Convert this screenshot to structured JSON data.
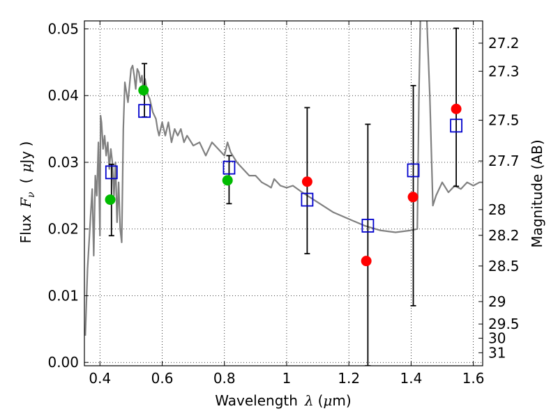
{
  "chart_data": {
    "type": "scatter",
    "xlabel": "Wavelength",
    "xlabel_symbol": "λ",
    "xlabel_unit_prefix": "(",
    "xlabel_unit_mu": "μ",
    "xlabel_unit_rest": "m)",
    "ylabel": "Flux",
    "ylabel_symbol": "F",
    "ylabel_subscript": "ν",
    "ylabel_unit_prefix": "(",
    "ylabel_unit_mu": "μ",
    "ylabel_unit_rest": "Jy )",
    "y2label": "Magnitude (AB)",
    "xlim": [
      0.35,
      1.63
    ],
    "ylim": [
      -0.0005,
      0.0512
    ],
    "grid": true,
    "x_ticks": [
      {
        "value": 0.4,
        "label": "0.4"
      },
      {
        "value": 0.6,
        "label": "0.6"
      },
      {
        "value": 0.8,
        "label": "0.8"
      },
      {
        "value": 1.0,
        "label": "1"
      },
      {
        "value": 1.2,
        "label": "1.2"
      },
      {
        "value": 1.4,
        "label": "1.4"
      },
      {
        "value": 1.6,
        "label": "1.6"
      }
    ],
    "y_ticks": [
      {
        "value": 0.0,
        "label": "0.00"
      },
      {
        "value": 0.01,
        "label": "0.01"
      },
      {
        "value": 0.02,
        "label": "0.02"
      },
      {
        "value": 0.03,
        "label": "0.03"
      },
      {
        "value": 0.04,
        "label": "0.04"
      },
      {
        "value": 0.05,
        "label": "0.05"
      }
    ],
    "magnitude_ticks": [
      "27.2",
      "27.3",
      "27.5",
      "27.7",
      "28",
      "28.2",
      "28.5",
      "29",
      "29.5",
      "30",
      "31"
    ],
    "colors": {
      "template": "#808080",
      "observed_red": "#ff0000",
      "observed_green": "#00bb00",
      "model_box": "#0000cc",
      "errorbar": "#000000"
    },
    "series": [
      {
        "name": "template spectrum",
        "x": [
          0.353,
          0.36,
          0.37,
          0.375,
          0.38,
          0.385,
          0.39,
          0.395,
          0.4,
          0.402,
          0.405,
          0.41,
          0.415,
          0.42,
          0.425,
          0.43,
          0.435,
          0.44,
          0.445,
          0.45,
          0.455,
          0.46,
          0.465,
          0.47,
          0.475,
          0.48,
          0.49,
          0.5,
          0.505,
          0.51,
          0.515,
          0.52,
          0.525,
          0.53,
          0.535,
          0.54,
          0.545,
          0.55,
          0.555,
          0.56,
          0.565,
          0.57,
          0.575,
          0.58,
          0.585,
          0.59,
          0.6,
          0.61,
          0.62,
          0.63,
          0.64,
          0.65,
          0.66,
          0.67,
          0.68,
          0.7,
          0.72,
          0.74,
          0.76,
          0.78,
          0.8,
          0.81,
          0.82,
          0.84,
          0.86,
          0.88,
          0.9,
          0.92,
          0.94,
          0.95,
          0.96,
          0.98,
          1.0,
          1.02,
          1.05,
          1.1,
          1.15,
          1.2,
          1.25,
          1.3,
          1.35,
          1.4,
          1.42,
          1.425,
          1.43,
          1.44,
          1.45,
          1.46,
          1.47,
          1.48,
          1.5,
          1.52,
          1.54,
          1.56,
          1.58,
          1.6,
          1.62,
          1.63
        ],
        "y": [
          0.004,
          0.014,
          0.022,
          0.026,
          0.016,
          0.028,
          0.025,
          0.033,
          0.019,
          0.037,
          0.036,
          0.032,
          0.034,
          0.031,
          0.033,
          0.029,
          0.032,
          0.03,
          0.025,
          0.03,
          0.021,
          0.027,
          0.02,
          0.018,
          0.035,
          0.042,
          0.039,
          0.044,
          0.0445,
          0.043,
          0.041,
          0.044,
          0.0435,
          0.042,
          0.043,
          0.0405,
          0.0425,
          0.041,
          0.04,
          0.0395,
          0.0385,
          0.0375,
          0.037,
          0.0365,
          0.035,
          0.034,
          0.036,
          0.034,
          0.036,
          0.033,
          0.035,
          0.034,
          0.035,
          0.033,
          0.034,
          0.0325,
          0.033,
          0.031,
          0.033,
          0.032,
          0.031,
          0.033,
          0.0315,
          0.03,
          0.029,
          0.028,
          0.028,
          0.027,
          0.0265,
          0.0262,
          0.0275,
          0.0265,
          0.0262,
          0.0265,
          0.0255,
          0.024,
          0.0225,
          0.0215,
          0.0205,
          0.0198,
          0.0195,
          0.0198,
          0.02,
          0.04,
          0.052,
          0.052,
          0.052,
          0.04,
          0.0235,
          0.025,
          0.027,
          0.0255,
          0.0265,
          0.026,
          0.027,
          0.0265,
          0.027,
          0.027
        ]
      },
      {
        "name": "observed photometry (green)",
        "x": [
          0.433,
          0.54,
          0.81
        ],
        "y": [
          0.0244,
          0.0408,
          0.0273
        ]
      },
      {
        "name": "observed photometry (red)",
        "x": [
          1.066,
          1.256,
          1.406,
          1.545
        ],
        "y": [
          0.0271,
          0.0152,
          0.0248,
          0.038
        ]
      },
      {
        "name": "model photometry (open squares)",
        "x": [
          0.437,
          0.543,
          0.815,
          1.066,
          1.261,
          1.407,
          1.545
        ],
        "y": [
          0.0285,
          0.0377,
          0.0292,
          0.0244,
          0.0205,
          0.0288,
          0.0355
        ]
      },
      {
        "name": "error bars",
        "x": [
          0.437,
          0.543,
          0.815,
          1.066,
          1.261,
          1.407,
          1.545
        ],
        "y_low": [
          0.019,
          0.0368,
          0.0238,
          0.0163,
          -0.0005,
          0.0085,
          0.0264
        ],
        "y_high": [
          0.0297,
          0.0448,
          0.031,
          0.0382,
          0.0357,
          0.0415,
          0.0501
        ]
      }
    ]
  }
}
